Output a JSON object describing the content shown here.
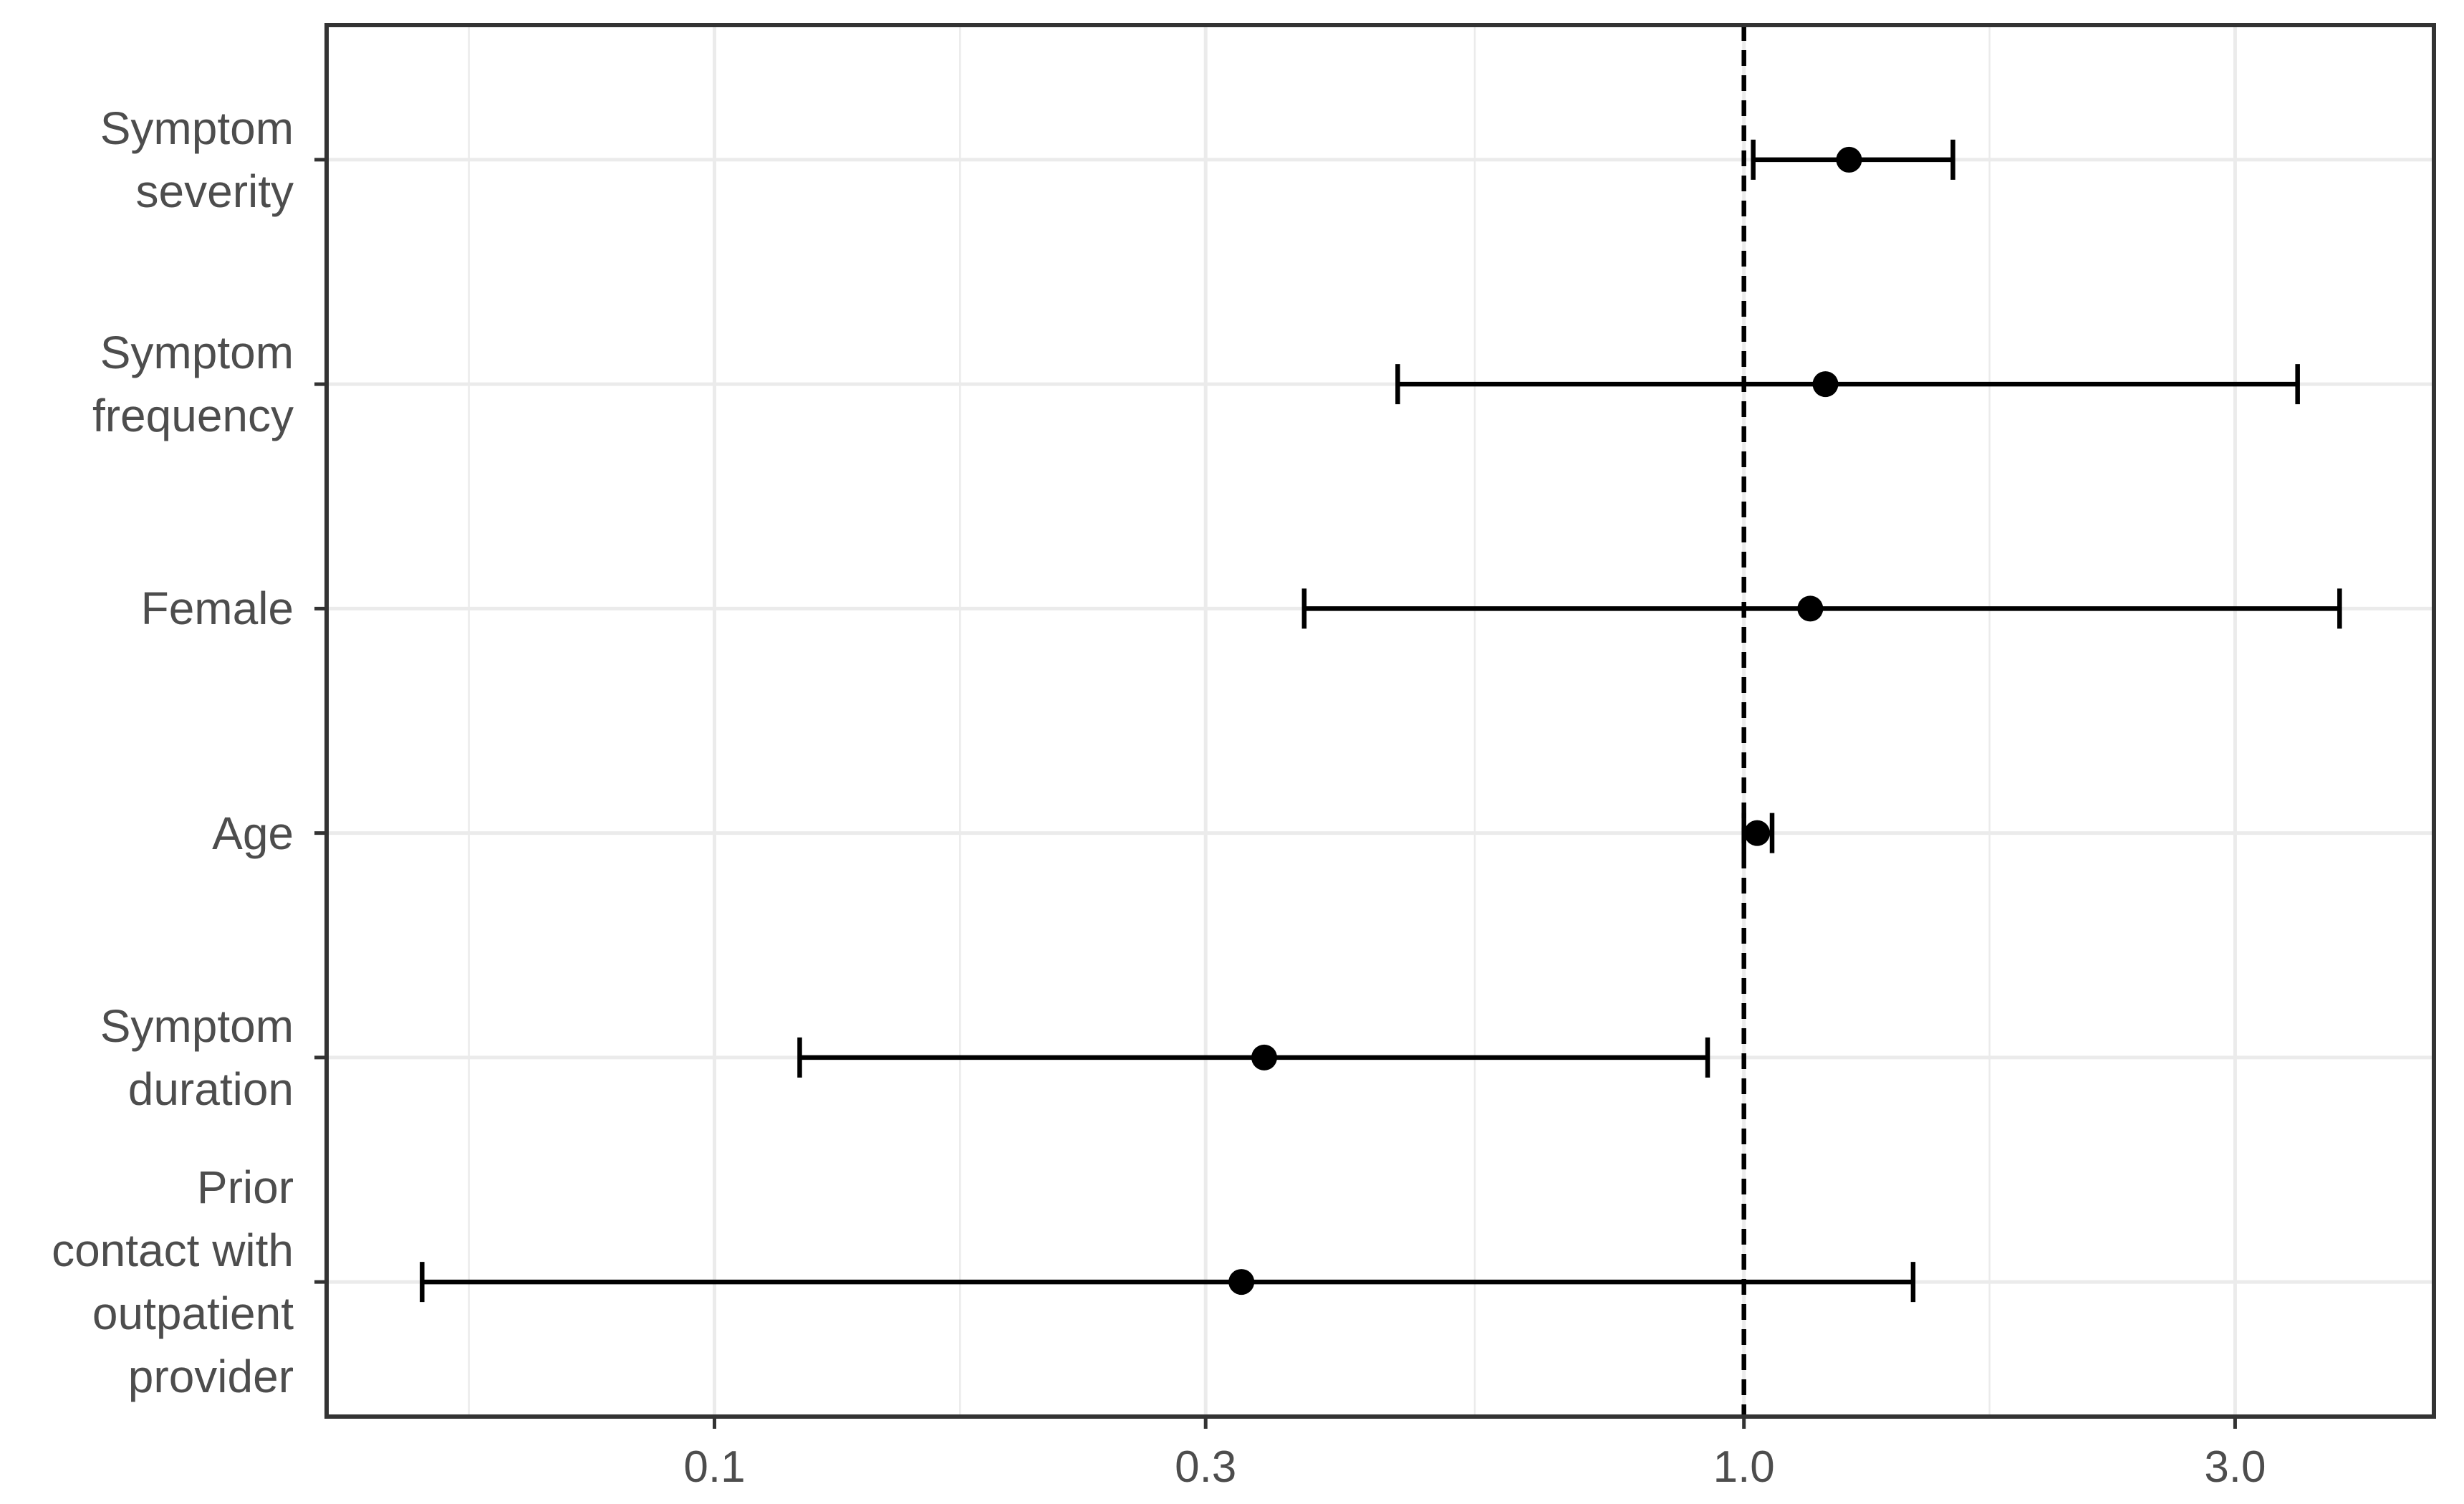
{
  "chart_data": {
    "type": "forest",
    "categories": [
      "Symptom\nseverity",
      "Symptom\nfrequency",
      "Female",
      "Age",
      "Symptom\nduration",
      "Prior\ncontact with\noutpatient\nprovider"
    ],
    "values": [
      1.265,
      1.2,
      1.16,
      1.03,
      0.342,
      0.325
    ],
    "ci_lower": [
      1.021,
      0.461,
      0.374,
      1.0,
      0.121,
      0.052
    ],
    "ci_upper": [
      1.596,
      3.45,
      3.79,
      1.065,
      0.922,
      1.46
    ],
    "color": "#000000",
    "xlim": [
      0.042,
      4.68
    ],
    "xticks": [
      0.1,
      0.3,
      {
        "value": 1,
        "label": "1.0"
      },
      {
        "value": 3,
        "label": "3.0"
      }
    ],
    "log_x": true,
    "grid": true,
    "reference_line": 1
  }
}
